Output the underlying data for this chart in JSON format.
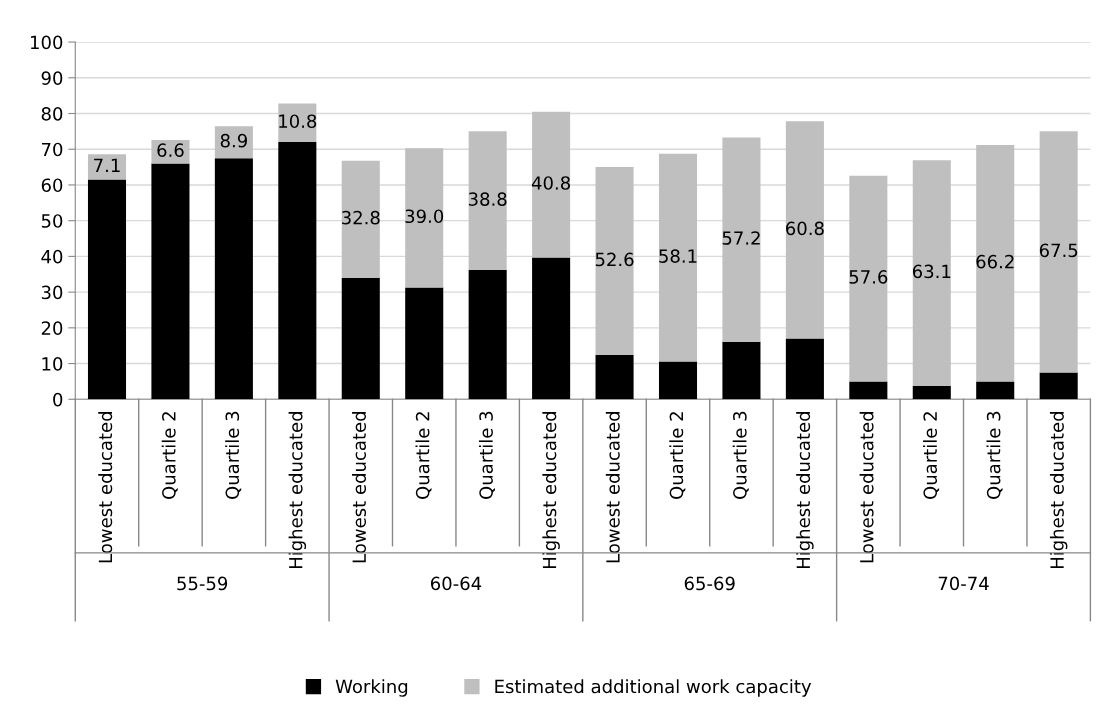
{
  "chart_data": {
    "type": "bar",
    "stacked": true,
    "categories": [
      "Lowest educated",
      "Quartile 2",
      "Quartile 3",
      "Highest educated",
      "Lowest educated",
      "Quartile 2",
      "Quartile 3",
      "Highest educated",
      "Lowest educated",
      "Quartile 2",
      "Quartile 3",
      "Highest educated",
      "Lowest educated",
      "Quartile 2",
      "Quartile 3",
      "Highest educated"
    ],
    "series": [
      {
        "name": "Working",
        "color": "#000000",
        "values": [
          61.5,
          66,
          67.5,
          72,
          34,
          31.3,
          36.2,
          39.7,
          12.4,
          10.6,
          16.1,
          17,
          5,
          3.8,
          5,
          7.5
        ]
      },
      {
        "name": "Estimated additional work capacity",
        "color": "#bfbfbf",
        "values": [
          7.1,
          6.6,
          8.9,
          10.8,
          32.8,
          39.0,
          38.8,
          40.8,
          52.6,
          58.1,
          57.2,
          60.8,
          57.6,
          63.1,
          66.2,
          67.5
        ],
        "value_labels": [
          "7.1",
          "6.6",
          "8.9",
          "10.8",
          "32.8",
          "39.0",
          "38.8",
          "40.8",
          "52.6",
          "58.1",
          "57.2",
          "60.8",
          "57.6",
          "63.1",
          "66.2",
          "67.5"
        ]
      }
    ],
    "annotations": [
      "55-59",
      "60-64",
      "65-69",
      "70-74"
    ],
    "ylim": [
      0,
      100
    ],
    "yticks": [
      0,
      10,
      20,
      30,
      40,
      50,
      60,
      70,
      80,
      90,
      100
    ],
    "grid": "y",
    "legend": "bottom"
  }
}
